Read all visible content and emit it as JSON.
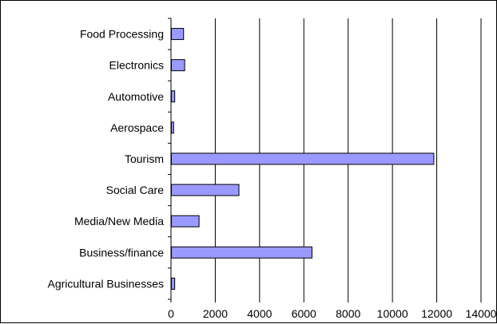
{
  "chart_data": {
    "type": "bar",
    "orientation": "horizontal",
    "categories": [
      "Food Processing",
      "Electronics",
      "Automotive",
      "Aerospace",
      "Tourism",
      "Social Care",
      "Media/New Media",
      "Business/finance",
      "Agricultural Businesses"
    ],
    "series": [
      {
        "values": [
          550,
          600,
          150,
          100,
          11850,
          3050,
          1250,
          6350,
          150
        ]
      }
    ],
    "xlim": [
      0,
      14000
    ],
    "x_ticks": [
      "0",
      "2000",
      "4000",
      "6000",
      "8000",
      "10000",
      "12000",
      "14000"
    ],
    "grid": "vertical",
    "legend": "none",
    "bar_color": "#9999ff",
    "bar_border_color": "#000000",
    "grid_color": "#000000"
  }
}
